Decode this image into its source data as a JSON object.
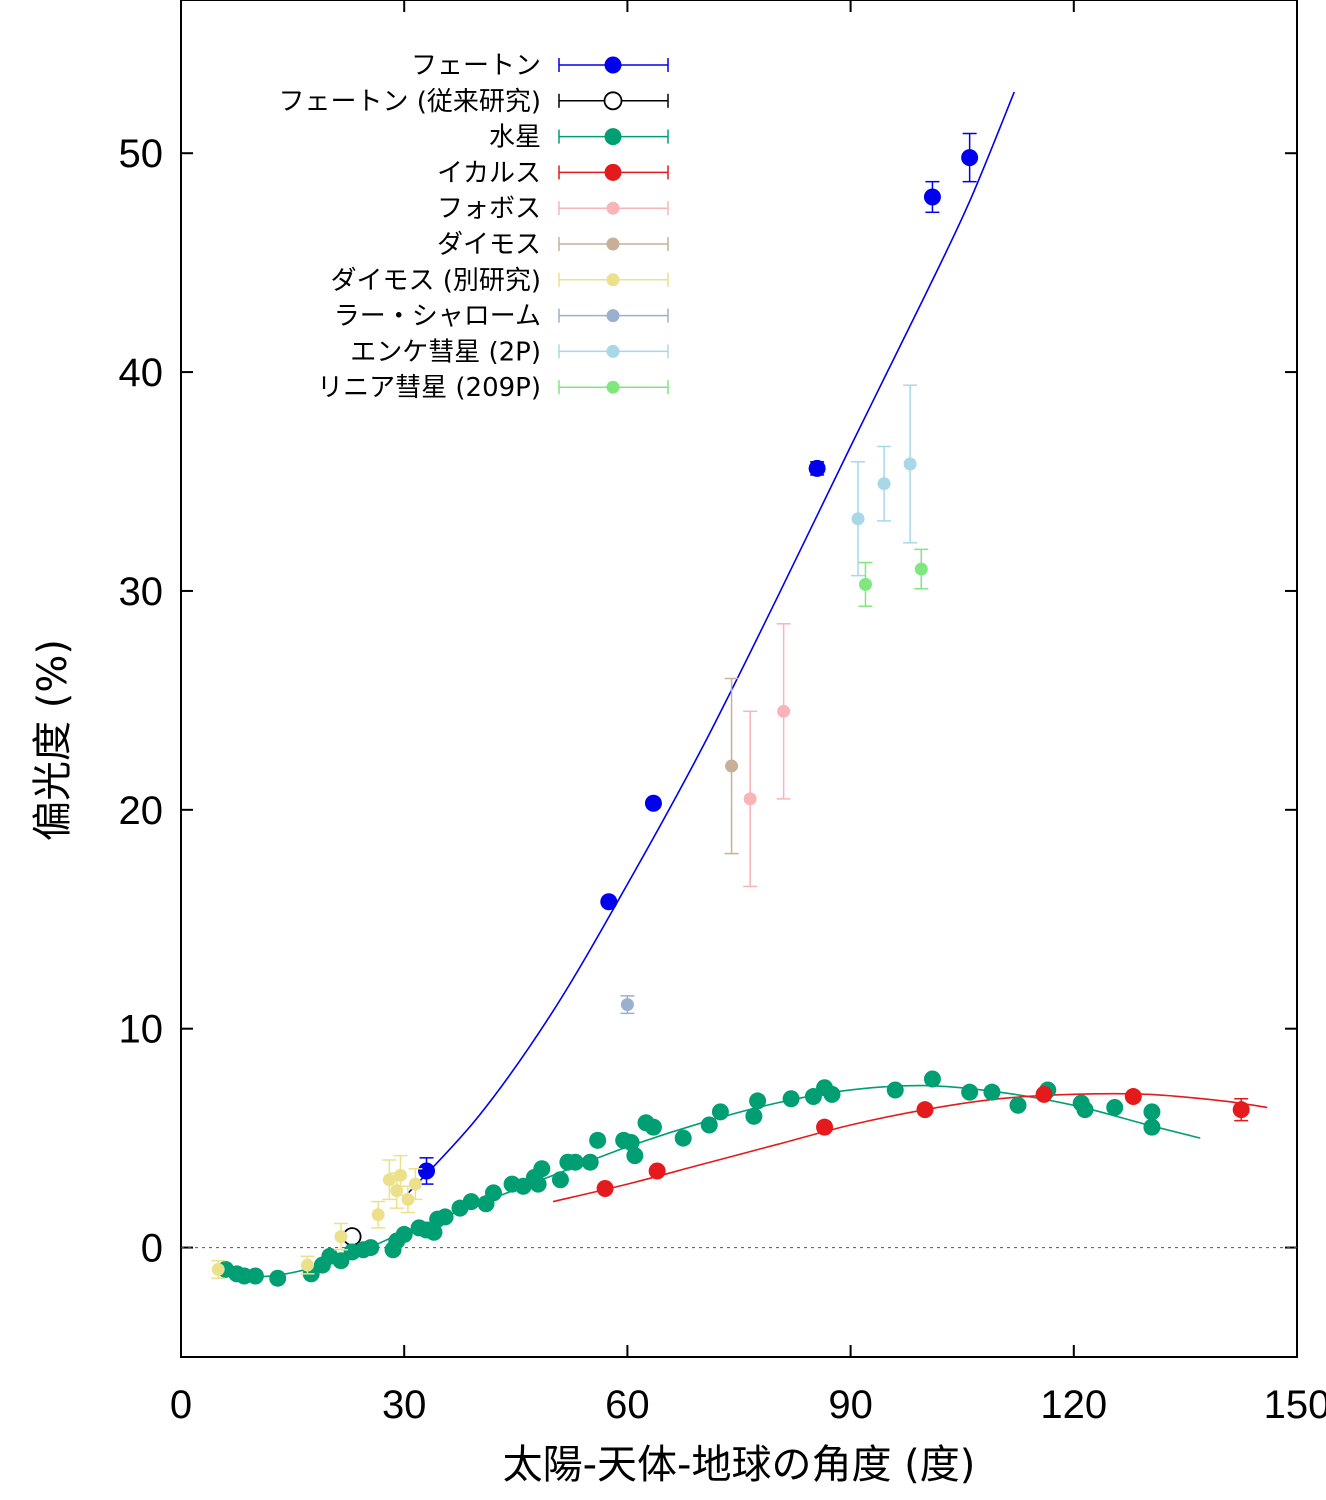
{
  "chart_data": {
    "type": "scatter",
    "xlabel": "太陽-天体-地球の角度 (度)",
    "ylabel": "偏光度 (%)",
    "xlim": [
      0,
      150
    ],
    "ylim": [
      -5,
      57
    ],
    "x_ticks": [
      0,
      30,
      60,
      90,
      120,
      150
    ],
    "y_ticks": [
      0,
      10,
      20,
      30,
      40,
      50
    ],
    "zero_line": true,
    "legend_position": "top-left",
    "series": [
      {
        "name": "フェートン",
        "color": "#0000ee",
        "marker": "filled-large",
        "points": [
          {
            "x": 33.0,
            "y": 3.5,
            "err": 0.6
          },
          {
            "x": 57.5,
            "y": 15.8,
            "err": 0.2
          },
          {
            "x": 63.5,
            "y": 20.3,
            "err": 0.2
          },
          {
            "x": 85.5,
            "y": 35.6,
            "err": 0.3
          },
          {
            "x": 101.0,
            "y": 48.0,
            "err": 0.7
          },
          {
            "x": 106.0,
            "y": 49.8,
            "err": 1.1
          }
        ],
        "fit": [
          [
            30,
            2.3
          ],
          [
            40,
            6.0
          ],
          [
            50,
            10.8
          ],
          [
            60,
            16.6
          ],
          [
            70,
            22.8
          ],
          [
            80,
            29.6
          ],
          [
            90,
            36.6
          ],
          [
            100,
            43.5
          ],
          [
            106,
            47.8
          ],
          [
            112,
            52.8
          ]
        ]
      },
      {
        "name": "フェートン (従来研究)",
        "color": "#000000",
        "marker": "open",
        "points": [
          {
            "x": 23.0,
            "y": 0.5,
            "err": 0.0
          }
        ]
      },
      {
        "name": "水星",
        "color": "#009e73",
        "marker": "filled-large",
        "points": [
          {
            "x": 6.0,
            "y": -1.0
          },
          {
            "x": 7.5,
            "y": -1.2
          },
          {
            "x": 8.5,
            "y": -1.3
          },
          {
            "x": 10.0,
            "y": -1.3
          },
          {
            "x": 13.0,
            "y": -1.4
          },
          {
            "x": 17.5,
            "y": -1.2
          },
          {
            "x": 19.0,
            "y": -0.8
          },
          {
            "x": 20.0,
            "y": -0.4
          },
          {
            "x": 21.5,
            "y": -0.6
          },
          {
            "x": 23.0,
            "y": -0.2
          },
          {
            "x": 24.5,
            "y": -0.1
          },
          {
            "x": 25.5,
            "y": 0.0
          },
          {
            "x": 28.5,
            "y": -0.1
          },
          {
            "x": 29.0,
            "y": 0.3
          },
          {
            "x": 30.0,
            "y": 0.6
          },
          {
            "x": 32.0,
            "y": 0.9
          },
          {
            "x": 33.0,
            "y": 0.8
          },
          {
            "x": 34.0,
            "y": 0.7
          },
          {
            "x": 34.5,
            "y": 1.3
          },
          {
            "x": 35.5,
            "y": 1.4
          },
          {
            "x": 37.5,
            "y": 1.8
          },
          {
            "x": 39.0,
            "y": 2.1
          },
          {
            "x": 41.0,
            "y": 2.0
          },
          {
            "x": 42.0,
            "y": 2.5
          },
          {
            "x": 44.5,
            "y": 2.9
          },
          {
            "x": 46.0,
            "y": 2.8
          },
          {
            "x": 47.5,
            "y": 3.2
          },
          {
            "x": 48.5,
            "y": 3.6
          },
          {
            "x": 48.0,
            "y": 2.9
          },
          {
            "x": 51.0,
            "y": 3.1
          },
          {
            "x": 52.0,
            "y": 3.9
          },
          {
            "x": 53.0,
            "y": 3.9
          },
          {
            "x": 55.0,
            "y": 3.9
          },
          {
            "x": 56.0,
            "y": 4.9
          },
          {
            "x": 59.5,
            "y": 4.9
          },
          {
            "x": 60.5,
            "y": 4.8
          },
          {
            "x": 61.0,
            "y": 4.2
          },
          {
            "x": 62.5,
            "y": 5.7
          },
          {
            "x": 63.5,
            "y": 5.5
          },
          {
            "x": 67.5,
            "y": 5.0
          },
          {
            "x": 71.0,
            "y": 5.6
          },
          {
            "x": 72.5,
            "y": 6.2
          },
          {
            "x": 77.0,
            "y": 6.0
          },
          {
            "x": 77.5,
            "y": 6.7
          },
          {
            "x": 82.0,
            "y": 6.8
          },
          {
            "x": 85.0,
            "y": 6.9
          },
          {
            "x": 86.5,
            "y": 7.3
          },
          {
            "x": 87.5,
            "y": 7.0
          },
          {
            "x": 96.0,
            "y": 7.2
          },
          {
            "x": 101.0,
            "y": 7.7
          },
          {
            "x": 106.0,
            "y": 7.1
          },
          {
            "x": 109.0,
            "y": 7.1
          },
          {
            "x": 112.5,
            "y": 6.5
          },
          {
            "x": 116.5,
            "y": 7.2
          },
          {
            "x": 121.0,
            "y": 6.6
          },
          {
            "x": 121.5,
            "y": 6.3
          },
          {
            "x": 125.5,
            "y": 6.4
          },
          {
            "x": 130.5,
            "y": 6.2
          },
          {
            "x": 130.5,
            "y": 5.5
          }
        ],
        "fit": [
          [
            6,
            -1.3
          ],
          [
            12,
            -1.3
          ],
          [
            18,
            -0.9
          ],
          [
            24,
            -0.2
          ],
          [
            30,
            0.7
          ],
          [
            40,
            2.0
          ],
          [
            50,
            3.3
          ],
          [
            60,
            4.6
          ],
          [
            70,
            5.7
          ],
          [
            80,
            6.6
          ],
          [
            90,
            7.2
          ],
          [
            100,
            7.4
          ],
          [
            110,
            7.1
          ],
          [
            120,
            6.5
          ],
          [
            130,
            5.6
          ],
          [
            137,
            5.0
          ]
        ]
      },
      {
        "name": "イカルス",
        "color": "#e41a1c",
        "marker": "filled-large",
        "points": [
          {
            "x": 57.0,
            "y": 2.7
          },
          {
            "x": 64.0,
            "y": 3.5
          },
          {
            "x": 86.5,
            "y": 5.5
          },
          {
            "x": 100.0,
            "y": 6.3
          },
          {
            "x": 116.0,
            "y": 7.0
          },
          {
            "x": 128.0,
            "y": 6.9
          },
          {
            "x": 142.5,
            "y": 6.3,
            "err": 0.5
          }
        ],
        "fit": [
          [
            50,
            2.1
          ],
          [
            60,
            2.9
          ],
          [
            70,
            3.8
          ],
          [
            80,
            4.7
          ],
          [
            90,
            5.6
          ],
          [
            100,
            6.3
          ],
          [
            110,
            6.8
          ],
          [
            120,
            7.0
          ],
          [
            130,
            7.0
          ],
          [
            140,
            6.7
          ],
          [
            146,
            6.4
          ]
        ]
      },
      {
        "name": "フォボス",
        "color": "#f8b4b8",
        "marker": "filled-small",
        "points": [
          {
            "x": 76.5,
            "y": 20.5,
            "err": 4.0
          },
          {
            "x": 81.0,
            "y": 24.5,
            "err": 4.0
          }
        ]
      },
      {
        "name": "ダイモス",
        "color": "#c8b098",
        "marker": "filled-small",
        "points": [
          {
            "x": 74.0,
            "y": 22.0,
            "err": 4.0
          }
        ]
      },
      {
        "name": "ダイモス (別研究)",
        "color": "#ece18a",
        "marker": "filled-small",
        "points": [
          {
            "x": 5.0,
            "y": -1.0,
            "err": 0.4
          },
          {
            "x": 17.0,
            "y": -0.8,
            "err": 0.4
          },
          {
            "x": 21.5,
            "y": 0.5,
            "err": 0.6
          },
          {
            "x": 26.5,
            "y": 1.5,
            "err": 0.6
          },
          {
            "x": 28.0,
            "y": 3.1,
            "err": 0.9
          },
          {
            "x": 29.0,
            "y": 2.6,
            "err": 0.8
          },
          {
            "x": 29.5,
            "y": 3.3,
            "err": 0.9
          },
          {
            "x": 30.5,
            "y": 2.2,
            "err": 0.6
          },
          {
            "x": 31.5,
            "y": 2.9,
            "err": 0.7
          }
        ]
      },
      {
        "name": "ラー・シャローム",
        "color": "#9ab0cc",
        "marker": "filled-small",
        "points": [
          {
            "x": 60.0,
            "y": 11.1,
            "err": 0.4
          }
        ]
      },
      {
        "name": "エンケ彗星 (2P)",
        "color": "#a8d8e8",
        "marker": "filled-small",
        "points": [
          {
            "x": 91.0,
            "y": 33.3,
            "err": 2.6
          },
          {
            "x": 94.5,
            "y": 34.9,
            "err": 1.7
          },
          {
            "x": 98.0,
            "y": 35.8,
            "err": 3.6
          }
        ]
      },
      {
        "name": "リニア彗星 (209P)",
        "color": "#7ee87e",
        "marker": "filled-small",
        "points": [
          {
            "x": 92.0,
            "y": 30.3,
            "err": 1.0
          },
          {
            "x": 99.5,
            "y": 31.0,
            "err": 0.9
          }
        ]
      }
    ]
  }
}
